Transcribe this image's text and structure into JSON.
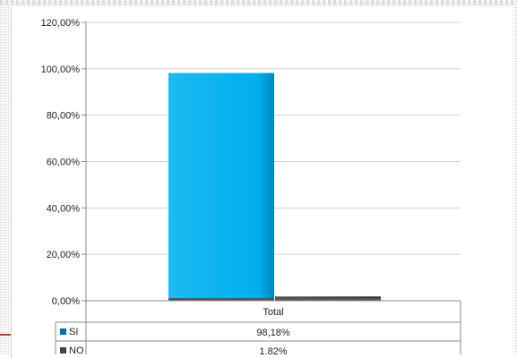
{
  "chart_data": {
    "type": "bar",
    "categories": [
      "Total"
    ],
    "series": [
      {
        "name": "SI",
        "values": [
          98.18
        ],
        "label": "98,18%",
        "color": "#00aeef"
      },
      {
        "name": "NO",
        "values": [
          1.82
        ],
        "label": "1,82%",
        "color": "#3f3f3f"
      }
    ],
    "ylim": [
      0,
      120
    ],
    "yticks": [
      {
        "value": 0,
        "label": "0,00%"
      },
      {
        "value": 20,
        "label": "20,00%"
      },
      {
        "value": 40,
        "label": "40,00%"
      },
      {
        "value": 60,
        "label": "60,00%"
      },
      {
        "value": 80,
        "label": "80,00%"
      },
      {
        "value": 100,
        "label": "100,00%"
      },
      {
        "value": 120,
        "label": "120,00%"
      }
    ],
    "grid": true,
    "legend": "data-table"
  }
}
